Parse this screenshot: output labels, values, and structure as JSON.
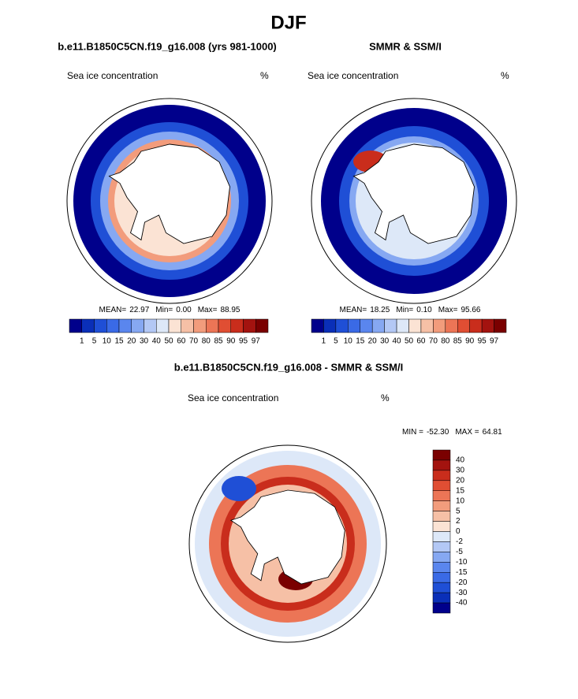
{
  "title": "DJF",
  "panels": [
    {
      "title": "b.e11.B1850C5CN.f19_g16.008 (yrs 981-1000)",
      "field_label": "Sea ice concentration",
      "units": "%",
      "stats": [
        {
          "label": "MEAN=",
          "value": "22.97"
        },
        {
          "label": "Min=",
          "value": "0.00"
        },
        {
          "label": "Max=",
          "value": "88.95"
        }
      ]
    },
    {
      "title": "SMMR & SSM/I",
      "field_label": "Sea ice concentration",
      "units": "%",
      "stats": [
        {
          "label": "MEAN=",
          "value": "18.25"
        },
        {
          "label": "Min=",
          "value": "0.10"
        },
        {
          "label": "Max=",
          "value": "95.66"
        }
      ]
    }
  ],
  "colorbar": {
    "labels": [
      1,
      5,
      10,
      15,
      20,
      30,
      40,
      50,
      60,
      70,
      80,
      85,
      90,
      95,
      97
    ],
    "colors": [
      "#00008b",
      "#0a2fb8",
      "#1f4fd6",
      "#3a6ae6",
      "#5a86ee",
      "#86a8f2",
      "#b3c8f5",
      "#dde8f8",
      "#fbe3d4",
      "#f6c0a6",
      "#f29c7c",
      "#ec7556",
      "#e04e33",
      "#c92d1c",
      "#a3130f",
      "#7a0000"
    ]
  },
  "difference": {
    "title": "b.e11.B1850C5CN.f19_g16.008 - SMMR & SSM/I",
    "field_label": "Sea ice concentration",
    "units": "%",
    "stats": [
      {
        "label": "MIN =",
        "value": "-52.30"
      },
      {
        "label": "MAX =",
        "value": "64.81"
      }
    ],
    "colorbar": {
      "labels": [
        40,
        30,
        20,
        15,
        10,
        5,
        2,
        0,
        -2,
        -5,
        -10,
        -15,
        -20,
        -30,
        -40
      ],
      "colors": [
        "#7a0000",
        "#a3130f",
        "#c92d1c",
        "#e04e33",
        "#ec7556",
        "#f29c7c",
        "#f6c0a6",
        "#fbe3d4",
        "#dde8f8",
        "#b3c8f5",
        "#86a8f2",
        "#5a86ee",
        "#3a6ae6",
        "#1f4fd6",
        "#0a2fb8",
        "#00008b"
      ]
    }
  }
}
